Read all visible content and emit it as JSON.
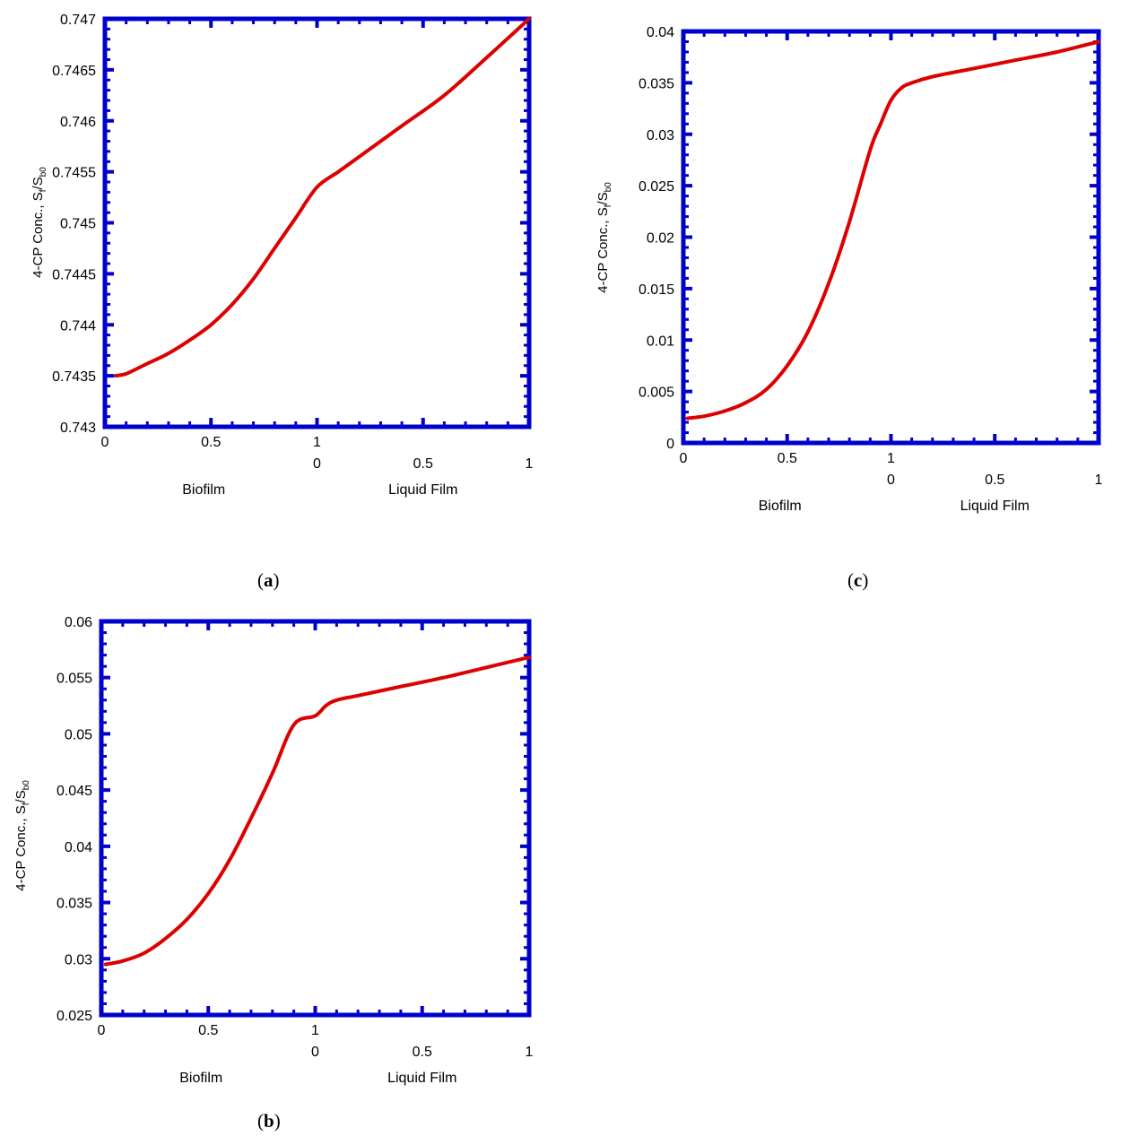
{
  "figure_colors": {
    "frame": "#0000cc",
    "curve": "#dd0000"
  },
  "chart_data": [
    {
      "id": "a",
      "type": "line",
      "caption_label": "a",
      "title": "",
      "ylabel_main": "4-CP Conc., S",
      "ylabel_sub1": "f",
      "ylabel_sep": "/S",
      "ylabel_sub2": "b0",
      "xlabel_left": "Biofilm",
      "xlabel_right": "Liquid Film",
      "xlim": [
        0,
        2
      ],
      "ylim": [
        0.743,
        0.747
      ],
      "y_ticks": [
        0.743,
        0.7435,
        0.744,
        0.7445,
        0.745,
        0.7455,
        0.746,
        0.7465,
        0.747
      ],
      "y_tick_labels": [
        "0.743",
        "0.7435",
        "0.744",
        "0.7445",
        "0.745",
        "0.7455",
        "0.746",
        "0.7465",
        "0.747"
      ],
      "x_ticks_biofilm": [
        0,
        0.5,
        1
      ],
      "x_tick_labels_biofilm": [
        "0",
        "0.5",
        "1"
      ],
      "x_ticks_liquid": [
        0,
        0.5,
        1
      ],
      "x_tick_labels_liquid": [
        "0",
        "0.5",
        "1"
      ],
      "series": [
        {
          "name": "4-CP concentration",
          "x": [
            0.05,
            0.1,
            0.2,
            0.3,
            0.4,
            0.5,
            0.6,
            0.7,
            0.8,
            0.9,
            1.0,
            1.1,
            1.2,
            1.4,
            1.6,
            1.8,
            2.0
          ],
          "y": [
            0.7435,
            0.74352,
            0.74362,
            0.74372,
            0.74385,
            0.744,
            0.7442,
            0.74445,
            0.74475,
            0.74505,
            0.74535,
            0.7455,
            0.74565,
            0.74595,
            0.74625,
            0.74662,
            0.747
          ]
        }
      ]
    },
    {
      "id": "c",
      "type": "line",
      "caption_label": "c",
      "title": "",
      "ylabel_main": "4-CP Conc., S",
      "ylabel_sub1": "f",
      "ylabel_sep": "/S",
      "ylabel_sub2": "b0",
      "xlabel_left": "Biofilm",
      "xlabel_right": "Liquid Film",
      "xlim": [
        0,
        2
      ],
      "ylim": [
        0,
        0.04
      ],
      "y_ticks": [
        0,
        0.005,
        0.01,
        0.015,
        0.02,
        0.025,
        0.03,
        0.035,
        0.04
      ],
      "y_tick_labels": [
        "0",
        "0.005",
        "0.01",
        "0.015",
        "0.02",
        "0.025",
        "0.03",
        "0.035",
        "0.04"
      ],
      "x_ticks_biofilm": [
        0,
        0.5,
        1
      ],
      "x_tick_labels_biofilm": [
        "0",
        "0.5",
        "1"
      ],
      "x_ticks_liquid": [
        0,
        0.5,
        1
      ],
      "x_tick_labels_liquid": [
        "0",
        "0.5",
        "1"
      ],
      "series": [
        {
          "name": "4-CP concentration",
          "x": [
            0.02,
            0.1,
            0.2,
            0.3,
            0.4,
            0.5,
            0.6,
            0.7,
            0.8,
            0.9,
            0.95,
            1.0,
            1.05,
            1.1,
            1.2,
            1.4,
            1.6,
            1.8,
            2.0
          ],
          "y": [
            0.0024,
            0.0026,
            0.0031,
            0.0039,
            0.0052,
            0.0075,
            0.0108,
            0.0155,
            0.0215,
            0.0285,
            0.031,
            0.0333,
            0.0345,
            0.035,
            0.0356,
            0.0364,
            0.0372,
            0.038,
            0.039
          ]
        }
      ]
    },
    {
      "id": "b",
      "type": "line",
      "caption_label": "b",
      "title": "",
      "ylabel_main": "4-CP Conc., S",
      "ylabel_sub1": "f",
      "ylabel_sep": "/S",
      "ylabel_sub2": "b0",
      "xlabel_left": "Biofilm",
      "xlabel_right": "Liquid Film",
      "xlim": [
        0,
        2
      ],
      "ylim": [
        0.025,
        0.06
      ],
      "y_ticks": [
        0.025,
        0.03,
        0.035,
        0.04,
        0.045,
        0.05,
        0.055,
        0.06
      ],
      "y_tick_labels": [
        "0.025",
        "0.03",
        "0.035",
        "0.04",
        "0.045",
        "0.05",
        "0.055",
        "0.06"
      ],
      "x_ticks_biofilm": [
        0,
        0.5,
        1
      ],
      "x_tick_labels_biofilm": [
        "0",
        "0.5",
        "1"
      ],
      "x_ticks_liquid": [
        0,
        0.5,
        1
      ],
      "x_tick_labels_liquid": [
        "0",
        "0.5",
        "1"
      ],
      "series": [
        {
          "name": "4-CP concentration",
          "x": [
            0.02,
            0.1,
            0.2,
            0.3,
            0.4,
            0.5,
            0.6,
            0.7,
            0.8,
            0.9,
            1.0,
            1.05,
            1.1,
            1.2,
            1.4,
            1.6,
            1.8,
            2.0
          ],
          "y": [
            0.0295,
            0.0298,
            0.0305,
            0.0318,
            0.0335,
            0.0358,
            0.0388,
            0.0425,
            0.0465,
            0.0508,
            0.0516,
            0.0525,
            0.053,
            0.0534,
            0.0542,
            0.055,
            0.0559,
            0.0568
          ]
        }
      ]
    }
  ]
}
